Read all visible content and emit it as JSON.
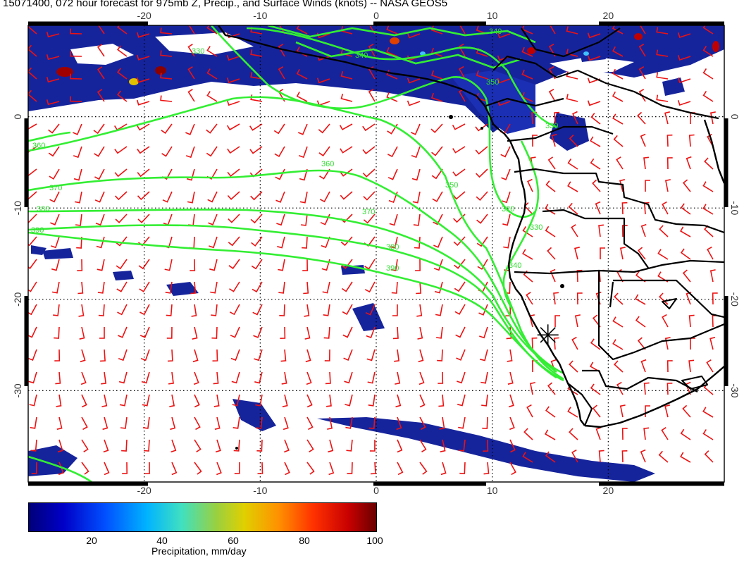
{
  "title": "15071400, 072 hour forecast for 975mb Z, Precip., and Surface Winds (knots) -- NASA GEOS5",
  "map": {
    "lon_range": [
      -30,
      30
    ],
    "lat_range": [
      -40,
      10
    ],
    "lon_ticks": [
      "-20",
      "-10",
      "0",
      "10",
      "20"
    ],
    "lat_ticks": [
      "0",
      "-10",
      "-20",
      "-30"
    ],
    "grid": "dotted, every 10 degrees",
    "contour_color": "#33ee33",
    "contour_labels": [
      "330",
      "340",
      "360",
      "350",
      "360",
      "370",
      "380",
      "390",
      "370",
      "380",
      "390",
      "340",
      "350",
      "320",
      "330",
      "340",
      "330"
    ],
    "wind_barb_color": "#ee1111",
    "coastline_color": "#000000",
    "marker": {
      "name": "asterisk",
      "lon": 14.8,
      "lat": -23.9
    }
  },
  "colorbar": {
    "ticks": [
      "20",
      "40",
      "60",
      "80",
      "100"
    ],
    "label": "Precipitation, mm/day",
    "range": [
      0,
      100
    ]
  }
}
